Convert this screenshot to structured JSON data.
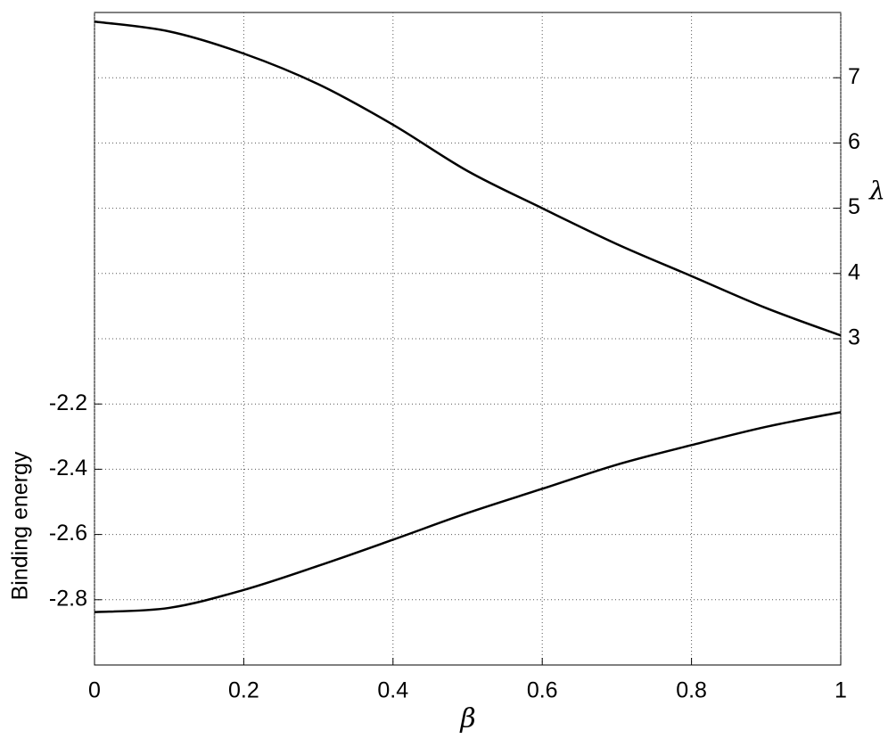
{
  "chart_data": {
    "type": "line",
    "xlabel": "β",
    "ylabel": "Binding energy",
    "y2label": "λ",
    "x": [
      0,
      0.1,
      0.2,
      0.3,
      0.4,
      0.5,
      0.6,
      0.7,
      0.8,
      0.9,
      1
    ],
    "series": [
      {
        "color": "#000000",
        "axis": "y2",
        "values": [
          7.86,
          7.71,
          7.37,
          6.9,
          6.28,
          5.57,
          5.0,
          4.45,
          3.96,
          3.47,
          3.05
        ]
      },
      {
        "color": "#000000",
        "values": [
          -2.838,
          -2.825,
          -2.77,
          -2.696,
          -2.616,
          -2.534,
          -2.46,
          -2.386,
          -2.326,
          -2.27,
          -2.225
        ]
      }
    ],
    "xlim": [
      0,
      1
    ],
    "xticks": [
      0,
      0.2,
      0.4,
      0.6,
      0.8,
      1
    ],
    "ylim": [
      -3,
      -1
    ],
    "yticks": [
      -2.8,
      -2.6,
      -2.4,
      -2.2
    ],
    "y2lim": [
      -2,
      8
    ],
    "y2ticks": [
      3,
      4,
      5,
      6,
      7
    ],
    "grid": true
  }
}
